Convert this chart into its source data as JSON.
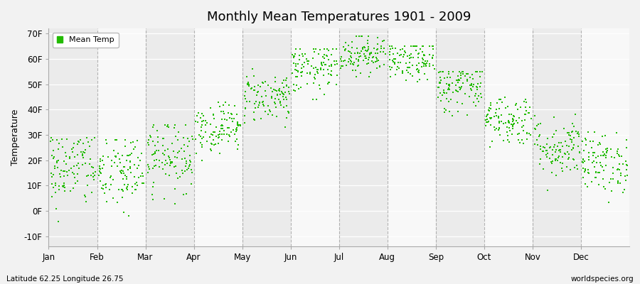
{
  "title": "Monthly Mean Temperatures 1901 - 2009",
  "ylabel": "Temperature",
  "yticks": [
    -10,
    0,
    10,
    20,
    30,
    40,
    50,
    60,
    70
  ],
  "ytick_labels": [
    "-10F",
    "0F",
    "10F",
    "20F",
    "30F",
    "40F",
    "50F",
    "60F",
    "70F"
  ],
  "ylim": [
    -14,
    72
  ],
  "months": [
    "Jan",
    "Feb",
    "Mar",
    "Apr",
    "May",
    "Jun",
    "Jul",
    "Aug",
    "Sep",
    "Oct",
    "Nov",
    "Dec"
  ],
  "dot_color": "#22bb00",
  "background_color": "#f2f2f2",
  "band_color_odd": "#ebebeb",
  "band_color_even": "#f8f8f8",
  "legend_label": "Mean Temp",
  "bottom_left": "Latitude 62.25 Longitude 26.75",
  "bottom_right": "worldspecies.org",
  "n_years": 109,
  "monthly_means_F": [
    17,
    15,
    22,
    33,
    45,
    56,
    62,
    59,
    49,
    36,
    25,
    19
  ],
  "monthly_stds_F": [
    8,
    8,
    7,
    5,
    5,
    5,
    4,
    4,
    5,
    5,
    6,
    6
  ],
  "monthly_mins_F": [
    -9,
    -8,
    2,
    20,
    33,
    44,
    53,
    48,
    37,
    23,
    8,
    2
  ],
  "monthly_maxs_F": [
    29,
    28,
    34,
    43,
    56,
    64,
    69,
    65,
    55,
    45,
    38,
    31
  ]
}
